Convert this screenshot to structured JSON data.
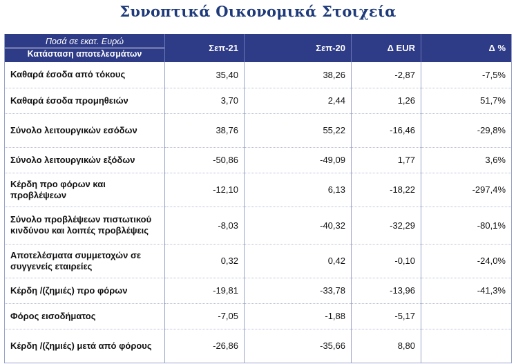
{
  "title": "Συνοπτικά Οικονομικά Στοιχεία",
  "header": {
    "unit": "Ποσά σε εκατ. Ευρώ",
    "subtitle": "Κατάσταση αποτελεσμάτων",
    "columns": [
      "Σεπ-21",
      "Σεπ-20",
      "Δ EUR",
      "Δ %"
    ]
  },
  "rows": [
    {
      "label": "Καθαρά έσοδα από τόκους",
      "cells": [
        "35,40",
        "38,26",
        "-2,87",
        "-7,5%"
      ]
    },
    {
      "label": "Καθαρά έσοδα προμηθειών",
      "cells": [
        "3,70",
        "2,44",
        "1,26",
        "51,7%"
      ]
    },
    {
      "label": "Σύνολο λειτουργικών εσόδων",
      "cells": [
        "38,76",
        "55,22",
        "-16,46",
        "-29,8%"
      ]
    },
    {
      "label": "Σύνολο λειτουργικών εξόδων",
      "cells": [
        "-50,86",
        "-49,09",
        "1,77",
        "3,6%"
      ]
    },
    {
      "label": "Κέρδη προ φόρων και προβλέψεων",
      "cells": [
        "-12,10",
        "6,13",
        "-18,22",
        "-297,4%"
      ]
    },
    {
      "label": "Σύνολο προβλέψεων πιστωτικού κινδύνου και λοιπές προβλέψεις",
      "cells": [
        "-8,03",
        "-40,32",
        "-32,29",
        "-80,1%"
      ]
    },
    {
      "label": "Αποτελέσματα συμμετοχών σε συγγενείς εταιρείες",
      "cells": [
        "0,32",
        "0,42",
        "-0,10",
        "-24,0%"
      ]
    },
    {
      "label": "Κέρδη /(ζημιές) προ φόρων",
      "cells": [
        "-19,81",
        "-33,78",
        "-13,96",
        "-41,3%"
      ]
    },
    {
      "label": "Φόρος εισοδήματος",
      "cells": [
        "-7,05",
        "-1,88",
        "-5,17",
        ""
      ]
    },
    {
      "label": "Κέρδη /(ζημιές) μετά από φόρους",
      "cells": [
        "-26,86",
        "-35,66",
        "8,80",
        ""
      ]
    }
  ],
  "colors": {
    "header_bg": "#2e3b87",
    "title": "#1f3a7a"
  }
}
